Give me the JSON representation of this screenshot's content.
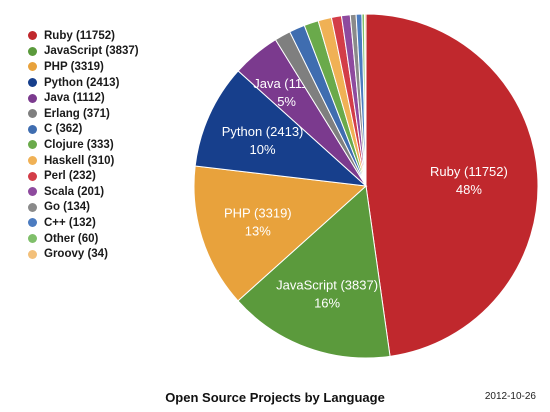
{
  "chart_data": {
    "type": "pie",
    "title": "Open Source Projects by Language",
    "date": "2012-10-26",
    "slices": [
      {
        "name": "Ruby",
        "value": 11752,
        "legend": "Ruby (11752)",
        "label": "Ruby (11752)",
        "percent": "48%",
        "color": "#c0282d"
      },
      {
        "name": "JavaScript",
        "value": 3837,
        "legend": "JavaScript (3837)",
        "label": "JavaScript (3837)",
        "percent": "16%",
        "color": "#5b9a3c"
      },
      {
        "name": "PHP",
        "value": 3319,
        "legend": "PHP (3319)",
        "label": "PHP (3319)",
        "percent": "13%",
        "color": "#e8a23c"
      },
      {
        "name": "Python",
        "value": 2413,
        "legend": "Python (2413)",
        "label": "Python (2413)",
        "percent": "10%",
        "color": "#173f8c"
      },
      {
        "name": "Java",
        "value": 1112,
        "legend": "Java (1112)",
        "label": "Java (1112)",
        "percent": "5%",
        "color": "#7b3a8e"
      },
      {
        "name": "Erlang",
        "value": 371,
        "legend": "Erlang (371)",
        "label": "",
        "percent": "",
        "color": "#7f7f7f"
      },
      {
        "name": "C",
        "value": 362,
        "legend": "C (362)",
        "label": "",
        "percent": "",
        "color": "#3f6db0"
      },
      {
        "name": "Clojure",
        "value": 333,
        "legend": "Clojure (333)",
        "label": "",
        "percent": "",
        "color": "#6aaa4b"
      },
      {
        "name": "Haskell",
        "value": 310,
        "legend": "Haskell (310)",
        "label": "",
        "percent": "",
        "color": "#f0b155"
      },
      {
        "name": "Perl",
        "value": 232,
        "legend": "Perl (232)",
        "label": "",
        "percent": "",
        "color": "#d33d48"
      },
      {
        "name": "Scala",
        "value": 201,
        "legend": "Scala (201)",
        "label": "",
        "percent": "",
        "color": "#8e4a9e"
      },
      {
        "name": "Go",
        "value": 134,
        "legend": "Go (134)",
        "label": "",
        "percent": "",
        "color": "#8a8a8a"
      },
      {
        "name": "C++",
        "value": 132,
        "legend": "C++ (132)",
        "label": "",
        "percent": "",
        "color": "#4c7cc0"
      },
      {
        "name": "Other",
        "value": 60,
        "legend": "Other (60)",
        "label": "",
        "percent": "",
        "color": "#7fbf6a"
      },
      {
        "name": "Groovy",
        "value": 34,
        "legend": "Groovy (34)",
        "label": "",
        "percent": "",
        "color": "#f3c07a"
      }
    ],
    "start_angle_deg": 0,
    "direction": "clockwise",
    "legend_position": "left"
  }
}
